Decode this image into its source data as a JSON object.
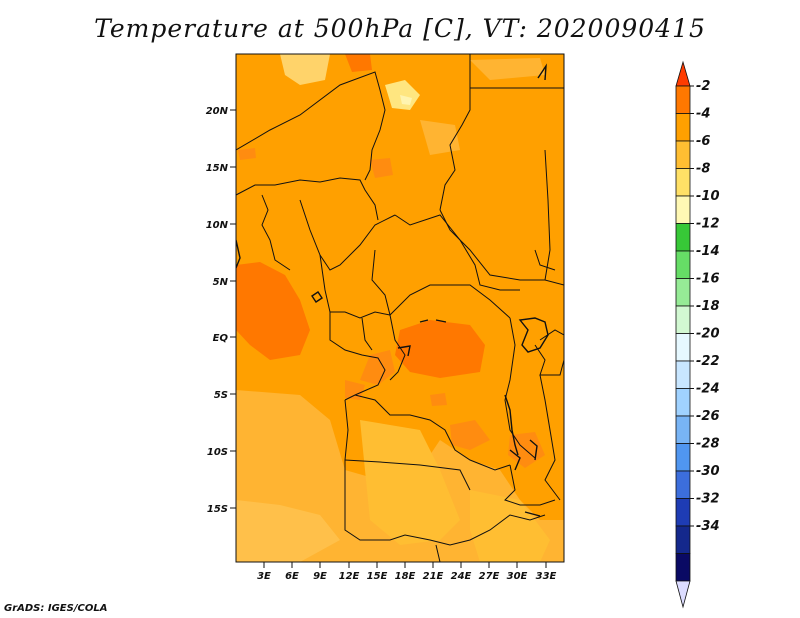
{
  "title": "Temperature at 500hPa [C], VT: 2020090415",
  "credit": "GrADS: IGES/COLA",
  "map": {
    "y_axis_labels": [
      "20N",
      "15N",
      "10N",
      "5N",
      "EQ",
      "5S",
      "10S",
      "15S"
    ],
    "x_axis_labels": [
      "3E",
      "6E",
      "9E",
      "12E",
      "15E",
      "18E",
      "21E",
      "24E",
      "27E",
      "30E",
      "33E"
    ]
  },
  "colorbar": {
    "levels": [
      "-2",
      "-4",
      "-6",
      "-8",
      "-10",
      "-12",
      "-14",
      "-16",
      "-18",
      "-20",
      "-22",
      "-24",
      "-26",
      "-28",
      "-30",
      "-32",
      "-34"
    ],
    "colors": [
      "#ff3c00",
      "#ff7800",
      "#ffa000",
      "#ffbe32",
      "#ffe066",
      "#fff8b4",
      "#37c837",
      "#66dd66",
      "#96eb96",
      "#d2f8d2",
      "#e6f8ff",
      "#c8e6ff",
      "#a0d2ff",
      "#78b4f5",
      "#5096f0",
      "#3c6edc",
      "#1e3cb4",
      "#14288c",
      "#0a0a64",
      "#dcdcff"
    ]
  }
}
